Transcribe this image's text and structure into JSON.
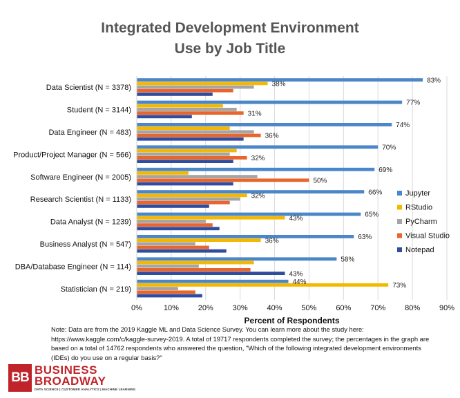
{
  "chart_data": {
    "type": "bar",
    "orientation": "horizontal",
    "title": "Integrated Development Environment Use by Job Title",
    "title_lines": [
      "Integrated Development Environment",
      "Use by Job Title"
    ],
    "xlabel": "Percent of Respondents",
    "ylabel": "",
    "xlim": [
      0,
      90
    ],
    "xticks": [
      "0%",
      "10%",
      "20%",
      "30%",
      "40%",
      "50%",
      "60%",
      "70%",
      "80%",
      "90%"
    ],
    "grid": "vertical",
    "legend_position": "right",
    "categories": [
      "Data Scientist (N = 3378)",
      "Student (N = 3144)",
      "Data Engineer (N = 483)",
      "Product/Project Manager (N = 566)",
      "Software Engineer (N = 2005)",
      "Research Scientist (N = 1133)",
      "Data Analyst (N = 1239)",
      "Business Analyst (N = 547)",
      "DBA/Database Engineer (N = 114)",
      "Statistician (N = 219)"
    ],
    "series": [
      {
        "name": "Jupyter",
        "color": "#4a86c8",
        "values": [
          83,
          77,
          74,
          70,
          69,
          66,
          65,
          63,
          58,
          44
        ]
      },
      {
        "name": "RStudio",
        "color": "#f5b800",
        "values": [
          38,
          25,
          27,
          29,
          15,
          32,
          43,
          36,
          34,
          73
        ]
      },
      {
        "name": "PyCharm",
        "color": "#a5a5a5",
        "values": [
          34,
          29,
          34,
          27,
          35,
          30,
          20,
          17,
          18,
          12
        ]
      },
      {
        "name": "Visual Studio",
        "color": "#e8662d",
        "values": [
          28,
          31,
          36,
          32,
          50,
          27,
          22,
          21,
          33,
          17
        ]
      },
      {
        "name": "Notepad",
        "color": "#2e4d9e",
        "values": [
          22,
          16,
          31,
          28,
          28,
          21,
          24,
          26,
          43,
          19
        ]
      }
    ],
    "data_labels": [
      {
        "category": 0,
        "series": 0,
        "text": "83%"
      },
      {
        "category": 0,
        "series": 1,
        "text": "38%"
      },
      {
        "category": 1,
        "series": 0,
        "text": "77%"
      },
      {
        "category": 1,
        "series": 3,
        "text": "31%"
      },
      {
        "category": 2,
        "series": 0,
        "text": "74%"
      },
      {
        "category": 2,
        "series": 3,
        "text": "36%"
      },
      {
        "category": 3,
        "series": 0,
        "text": "70%"
      },
      {
        "category": 3,
        "series": 3,
        "text": "32%"
      },
      {
        "category": 4,
        "series": 0,
        "text": "69%"
      },
      {
        "category": 4,
        "series": 3,
        "text": "50%"
      },
      {
        "category": 5,
        "series": 0,
        "text": "66%"
      },
      {
        "category": 5,
        "series": 1,
        "text": "32%"
      },
      {
        "category": 6,
        "series": 0,
        "text": "65%"
      },
      {
        "category": 6,
        "series": 1,
        "text": "43%"
      },
      {
        "category": 7,
        "series": 0,
        "text": "63%"
      },
      {
        "category": 7,
        "series": 1,
        "text": "36%"
      },
      {
        "category": 8,
        "series": 0,
        "text": "58%"
      },
      {
        "category": 8,
        "series": 4,
        "text": "43%"
      },
      {
        "category": 9,
        "series": 0,
        "text": "44%"
      },
      {
        "category": 9,
        "series": 1,
        "text": "73%"
      }
    ]
  },
  "note": "Note: Data are from the 2019 Kaggle ML and Data Science Survey. You can learn more about the study here: https://www.kaggle.com/c/kaggle-survey-2019. A total of 19717 respondents completed the survey; the percentages in the graph are based on a total of 14762 respondents who answered the question, \"Which of the following integrated development environments (IDEs) do you use on a regular basis?\"",
  "logo": {
    "mark": "BB",
    "line1": "BUSINESS",
    "line2": "BROADWAY",
    "tagline": "DATA SCIENCE | CUSTOMER ANALYTICS | MACHINE LEARNING",
    "color": "#c0242a"
  }
}
